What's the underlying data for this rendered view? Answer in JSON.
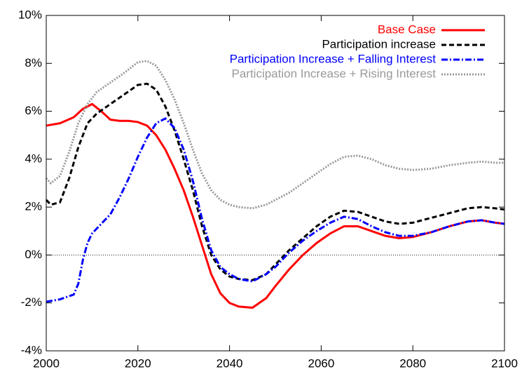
{
  "chart_data": {
    "type": "line",
    "xlim": [
      2000,
      2100
    ],
    "xticks": [
      2000,
      2020,
      2040,
      2060,
      2080,
      2100
    ],
    "ylim": [
      -4,
      10
    ],
    "yticks": [
      {
        "value": -4,
        "label": "-4%"
      },
      {
        "value": -2,
        "label": "-2%"
      },
      {
        "value": 0,
        "label": "0%"
      },
      {
        "value": 2,
        "label": "2%"
      },
      {
        "value": 4,
        "label": "4%"
      },
      {
        "value": 6,
        "label": "6%"
      },
      {
        "value": 8,
        "label": "8%"
      },
      {
        "value": 10,
        "label": "10%"
      }
    ],
    "zero_line": true,
    "legend": "top-right",
    "series": [
      {
        "name": "Base Case",
        "color": "#ff0000",
        "dash": "solid",
        "x": [
          2000,
          2003,
          2006,
          2008,
          2010,
          2012,
          2014,
          2016,
          2018,
          2020,
          2022,
          2024,
          2026,
          2028,
          2030,
          2032,
          2034,
          2036,
          2038,
          2040,
          2042,
          2045,
          2048,
          2050,
          2053,
          2056,
          2059,
          2062,
          2065,
          2068,
          2071,
          2074,
          2077,
          2080,
          2084,
          2088,
          2092,
          2095,
          2098,
          2100
        ],
        "values": [
          5.4,
          5.5,
          5.75,
          6.1,
          6.3,
          6.0,
          5.65,
          5.6,
          5.6,
          5.55,
          5.4,
          5.0,
          4.4,
          3.6,
          2.7,
          1.6,
          0.4,
          -0.8,
          -1.6,
          -2.0,
          -2.15,
          -2.2,
          -1.8,
          -1.3,
          -0.6,
          0.0,
          0.5,
          0.9,
          1.2,
          1.2,
          1.0,
          0.8,
          0.7,
          0.75,
          0.95,
          1.2,
          1.4,
          1.45,
          1.35,
          1.3
        ]
      },
      {
        "name": "Participation increase",
        "color": "#000000",
        "dash": "dashed",
        "x": [
          2000,
          2001,
          2003,
          2005,
          2007,
          2009,
          2011,
          2014,
          2017,
          2020,
          2022,
          2024,
          2026,
          2028,
          2030,
          2032,
          2034,
          2036,
          2038,
          2040,
          2042,
          2045,
          2048,
          2050,
          2053,
          2056,
          2059,
          2062,
          2065,
          2068,
          2071,
          2074,
          2077,
          2080,
          2084,
          2088,
          2092,
          2095,
          2098,
          2100
        ],
        "values": [
          2.3,
          2.1,
          2.2,
          3.2,
          4.5,
          5.5,
          5.9,
          6.3,
          6.7,
          7.1,
          7.15,
          6.9,
          6.2,
          5.2,
          4.0,
          2.7,
          1.2,
          0.0,
          -0.6,
          -0.9,
          -1.0,
          -1.05,
          -0.8,
          -0.4,
          0.2,
          0.7,
          1.2,
          1.6,
          1.85,
          1.8,
          1.6,
          1.4,
          1.3,
          1.35,
          1.55,
          1.75,
          1.95,
          2.0,
          1.95,
          1.9
        ]
      },
      {
        "name": "Participation Increase + Falling Interest",
        "color": "#0000ff",
        "dash": "dashdot",
        "x": [
          2000,
          2003,
          2006,
          2007,
          2008,
          2009,
          2010,
          2012,
          2014,
          2016,
          2018,
          2020,
          2022,
          2024,
          2026,
          2028,
          2030,
          2032,
          2034,
          2036,
          2038,
          2040,
          2042,
          2045,
          2048,
          2050,
          2053,
          2056,
          2059,
          2062,
          2065,
          2068,
          2071,
          2074,
          2077,
          2080,
          2084,
          2088,
          2092,
          2095,
          2098,
          2100
        ],
        "values": [
          -1.95,
          -1.85,
          -1.65,
          -1.2,
          -0.2,
          0.5,
          0.9,
          1.3,
          1.7,
          2.4,
          3.2,
          4.1,
          4.9,
          5.5,
          5.7,
          5.3,
          4.4,
          3.1,
          1.5,
          0.2,
          -0.5,
          -0.8,
          -1.0,
          -1.1,
          -0.8,
          -0.5,
          0.1,
          0.6,
          1.0,
          1.35,
          1.6,
          1.5,
          1.2,
          0.95,
          0.8,
          0.8,
          0.95,
          1.2,
          1.4,
          1.45,
          1.35,
          1.3
        ]
      },
      {
        "name": "Participation Increase + Rising Interest",
        "color": "#999999",
        "dash": "dotted",
        "x": [
          2000,
          2001,
          2003,
          2005,
          2007,
          2009,
          2011,
          2014,
          2017,
          2020,
          2022,
          2024,
          2026,
          2028,
          2030,
          2032,
          2034,
          2036,
          2038,
          2040,
          2042,
          2045,
          2048,
          2050,
          2053,
          2056,
          2059,
          2062,
          2065,
          2068,
          2071,
          2074,
          2077,
          2080,
          2084,
          2088,
          2092,
          2095,
          2098,
          2100
        ],
        "values": [
          3.2,
          3.0,
          3.3,
          4.3,
          5.5,
          6.3,
          6.8,
          7.2,
          7.6,
          8.05,
          8.1,
          7.9,
          7.3,
          6.5,
          5.5,
          4.4,
          3.4,
          2.7,
          2.3,
          2.1,
          2.0,
          1.95,
          2.1,
          2.3,
          2.6,
          3.0,
          3.4,
          3.8,
          4.1,
          4.15,
          4.0,
          3.75,
          3.6,
          3.55,
          3.6,
          3.75,
          3.85,
          3.9,
          3.85,
          3.85
        ]
      }
    ]
  }
}
